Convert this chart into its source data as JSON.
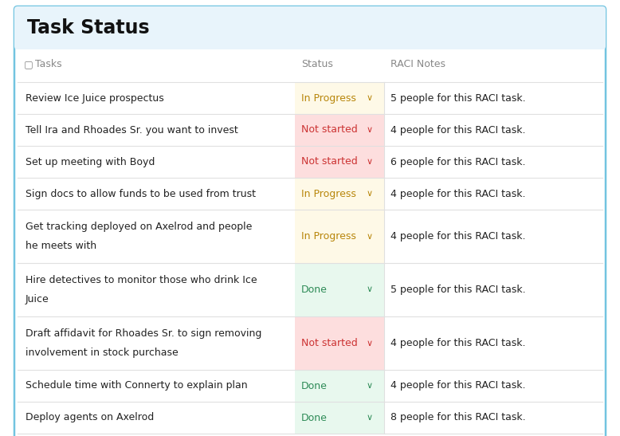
{
  "title": "Task Status",
  "header": [
    "Tasks",
    "Status",
    "RACI Notes"
  ],
  "rows": [
    {
      "task": "Review Ice Juice prospectus",
      "task2": "",
      "status": "In Progress",
      "raci": "5 people for this RACI task.",
      "status_bg": "#fef9e7",
      "status_color": "#b8860b"
    },
    {
      "task": "Tell Ira and Rhoades Sr. you want to invest",
      "task2": "",
      "status": "Not started",
      "raci": "4 people for this RACI task.",
      "status_bg": "#fddede",
      "status_color": "#cc3333"
    },
    {
      "task": "Set up meeting with Boyd",
      "task2": "",
      "status": "Not started",
      "raci": "6 people for this RACI task.",
      "status_bg": "#fddede",
      "status_color": "#cc3333"
    },
    {
      "task": "Sign docs to allow funds to be used from trust",
      "task2": "",
      "status": "In Progress",
      "raci": "4 people for this RACI task.",
      "status_bg": "#fef9e7",
      "status_color": "#b8860b"
    },
    {
      "task": "Get tracking deployed on Axelrod and people",
      "task2": "he meets with",
      "status": "In Progress",
      "raci": "4 people for this RACI task.",
      "status_bg": "#fef9e7",
      "status_color": "#b8860b"
    },
    {
      "task": "Hire detectives to monitor those who drink Ice",
      "task2": "Juice",
      "status": "Done",
      "raci": "5 people for this RACI task.",
      "status_bg": "#e8f8ee",
      "status_color": "#2e8b57"
    },
    {
      "task": "Draft affidavit for Rhoades Sr. to sign removing",
      "task2": "involvement in stock purchase",
      "status": "Not started",
      "raci": "4 people for this RACI task.",
      "status_bg": "#fddede",
      "status_color": "#cc3333"
    },
    {
      "task": "Schedule time with Connerty to explain plan",
      "task2": "",
      "status": "Done",
      "raci": "4 people for this RACI task.",
      "status_bg": "#e8f8ee",
      "status_color": "#2e8b57"
    },
    {
      "task": "Deploy agents on Axelrod",
      "task2": "",
      "status": "Done",
      "raci": "8 people for this RACI task.",
      "status_bg": "#e8f8ee",
      "status_color": "#2e8b57"
    }
  ],
  "title_bg": "#e8f4fb",
  "header_color": "#888888",
  "outer_border_color": "#72c4e0",
  "row_line_color": "#e0e0e0",
  "bg_color": "#ffffff",
  "figsize": [
    7.78,
    5.47
  ],
  "dpi": 100
}
